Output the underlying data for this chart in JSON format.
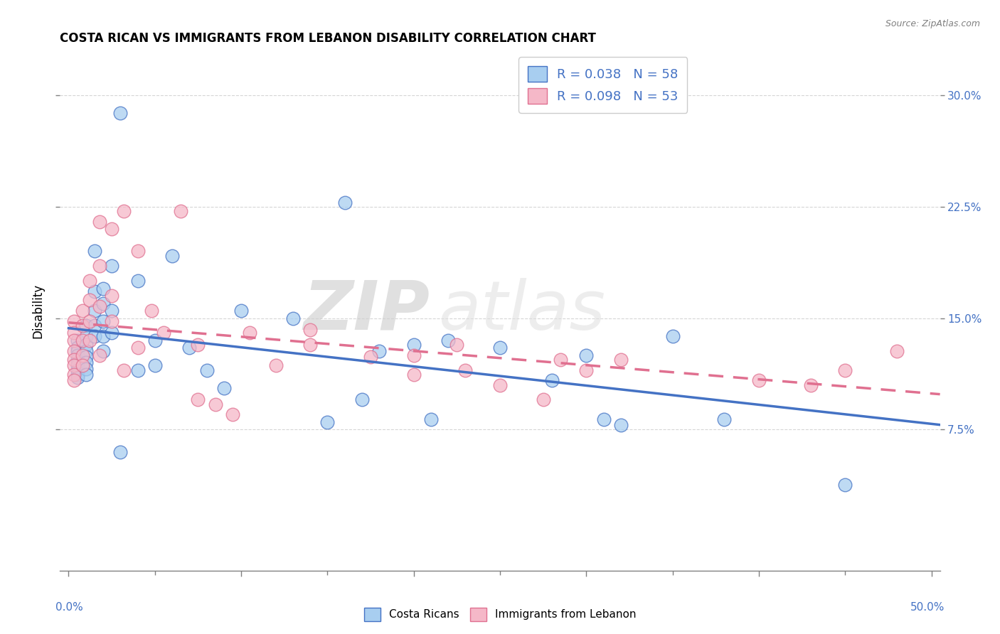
{
  "title": "COSTA RICAN VS IMMIGRANTS FROM LEBANON DISABILITY CORRELATION CHART",
  "source": "Source: ZipAtlas.com",
  "ylabel": "Disability",
  "yticks": [
    0.075,
    0.15,
    0.225,
    0.3
  ],
  "ytick_labels": [
    "7.5%",
    "15.0%",
    "22.5%",
    "30.0%"
  ],
  "xlim": [
    -0.005,
    0.505
  ],
  "ylim": [
    -0.02,
    0.33
  ],
  "legend_label1": "R = 0.038   N = 58",
  "legend_label2": "R = 0.098   N = 53",
  "legend_label_bottom1": "Costa Ricans",
  "legend_label_bottom2": "Immigrants from Lebanon",
  "color_blue": "#A8CEF0",
  "color_pink": "#F5B8C8",
  "color_blue_line": "#4472C4",
  "color_pink_line": "#E07090",
  "watermark_zip": "ZIP",
  "watermark_atlas": "atlas",
  "blue_scatter_x": [
    0.005,
    0.005,
    0.005,
    0.005,
    0.005,
    0.005,
    0.005,
    0.005,
    0.005,
    0.005,
    0.01,
    0.01,
    0.01,
    0.01,
    0.01,
    0.01,
    0.01,
    0.01,
    0.015,
    0.015,
    0.015,
    0.015,
    0.015,
    0.02,
    0.02,
    0.02,
    0.02,
    0.02,
    0.025,
    0.025,
    0.025,
    0.03,
    0.03,
    0.04,
    0.04,
    0.05,
    0.05,
    0.06,
    0.07,
    0.08,
    0.09,
    0.1,
    0.13,
    0.15,
    0.16,
    0.17,
    0.18,
    0.2,
    0.21,
    0.22,
    0.25,
    0.28,
    0.3,
    0.31,
    0.32,
    0.35,
    0.38,
    0.45
  ],
  "blue_scatter_y": [
    0.135,
    0.13,
    0.128,
    0.125,
    0.122,
    0.12,
    0.118,
    0.115,
    0.112,
    0.11,
    0.145,
    0.138,
    0.132,
    0.128,
    0.124,
    0.12,
    0.116,
    0.112,
    0.195,
    0.168,
    0.155,
    0.145,
    0.138,
    0.17,
    0.16,
    0.148,
    0.138,
    0.128,
    0.185,
    0.155,
    0.14,
    0.288,
    0.06,
    0.175,
    0.115,
    0.135,
    0.118,
    0.192,
    0.13,
    0.115,
    0.103,
    0.155,
    0.15,
    0.08,
    0.228,
    0.095,
    0.128,
    0.132,
    0.082,
    0.135,
    0.13,
    0.108,
    0.125,
    0.082,
    0.078,
    0.138,
    0.082,
    0.038
  ],
  "pink_scatter_x": [
    0.003,
    0.003,
    0.003,
    0.003,
    0.003,
    0.003,
    0.003,
    0.003,
    0.008,
    0.008,
    0.008,
    0.008,
    0.008,
    0.012,
    0.012,
    0.012,
    0.012,
    0.018,
    0.018,
    0.018,
    0.018,
    0.025,
    0.025,
    0.025,
    0.032,
    0.032,
    0.04,
    0.04,
    0.048,
    0.055,
    0.065,
    0.075,
    0.075,
    0.085,
    0.095,
    0.105,
    0.12,
    0.14,
    0.14,
    0.175,
    0.2,
    0.2,
    0.225,
    0.23,
    0.25,
    0.275,
    0.285,
    0.3,
    0.32,
    0.4,
    0.43,
    0.45,
    0.48
  ],
  "pink_scatter_y": [
    0.148,
    0.14,
    0.135,
    0.128,
    0.122,
    0.118,
    0.112,
    0.108,
    0.155,
    0.145,
    0.135,
    0.125,
    0.118,
    0.175,
    0.162,
    0.148,
    0.135,
    0.215,
    0.185,
    0.158,
    0.125,
    0.21,
    0.165,
    0.148,
    0.222,
    0.115,
    0.195,
    0.13,
    0.155,
    0.14,
    0.222,
    0.132,
    0.095,
    0.092,
    0.085,
    0.14,
    0.118,
    0.142,
    0.132,
    0.124,
    0.125,
    0.112,
    0.132,
    0.115,
    0.105,
    0.095,
    0.122,
    0.115,
    0.122,
    0.108,
    0.105,
    0.115,
    0.128
  ]
}
